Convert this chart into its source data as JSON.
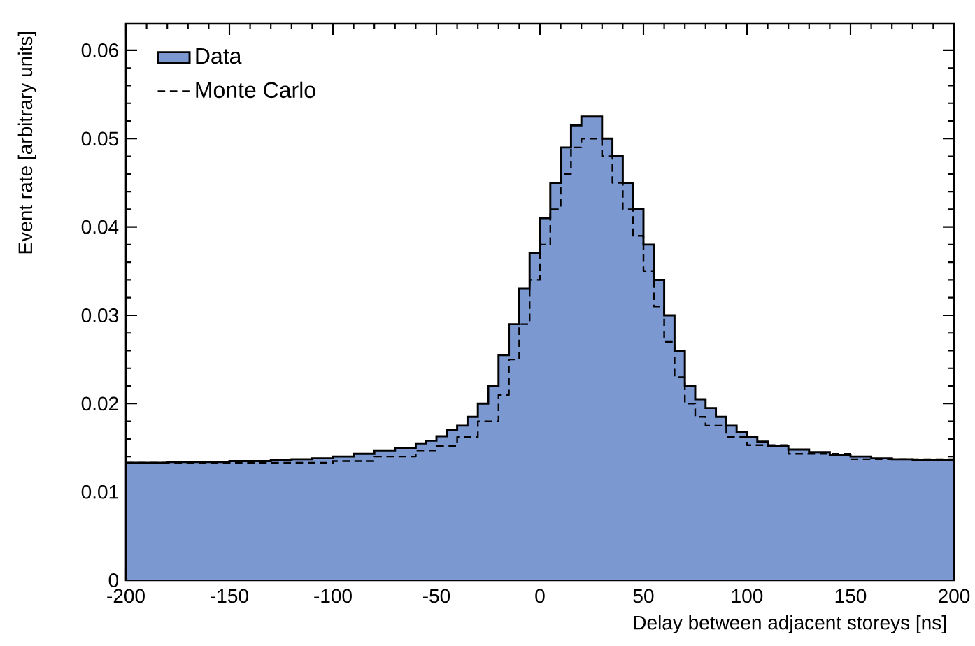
{
  "chart_data": {
    "type": "histogram",
    "xlabel": "Delay between adjacent storeys [ns]",
    "ylabel": "Event rate [arbitrary units]",
    "xlim": [
      -200,
      200
    ],
    "ylim": [
      0,
      0.063
    ],
    "xticks": [
      -200,
      -150,
      -100,
      -50,
      0,
      50,
      100,
      150,
      200
    ],
    "yticks": [
      0,
      0.01,
      0.02,
      0.03,
      0.04,
      0.05,
      0.06
    ],
    "legend": "top left",
    "series": [
      {
        "name": "Data",
        "color": "#7b98d0",
        "bins": [
          -200,
          -190,
          -180,
          -170,
          -160,
          -150,
          -140,
          -130,
          -120,
          -110,
          -100,
          -90,
          -80,
          -70,
          -60,
          -55,
          -50,
          -45,
          -40,
          -35,
          -30,
          -25,
          -20,
          -15,
          -10,
          -5,
          0,
          5,
          10,
          15,
          20,
          25,
          30,
          35,
          40,
          45,
          50,
          55,
          60,
          65,
          70,
          75,
          80,
          85,
          90,
          95,
          100,
          105,
          110,
          120,
          130,
          140,
          150,
          160,
          170,
          180,
          190,
          200
        ],
        "values": [
          0.0133,
          0.0133,
          0.0134,
          0.0134,
          0.0134,
          0.0135,
          0.0135,
          0.0136,
          0.0137,
          0.0138,
          0.014,
          0.0143,
          0.0147,
          0.015,
          0.0155,
          0.0158,
          0.0163,
          0.017,
          0.0175,
          0.0185,
          0.02,
          0.022,
          0.0255,
          0.029,
          0.033,
          0.037,
          0.041,
          0.045,
          0.049,
          0.0515,
          0.0525,
          0.0525,
          0.05,
          0.048,
          0.045,
          0.042,
          0.038,
          0.034,
          0.03,
          0.026,
          0.022,
          0.0205,
          0.0195,
          0.0185,
          0.0175,
          0.0168,
          0.0162,
          0.0157,
          0.0152,
          0.0148,
          0.0145,
          0.0142,
          0.014,
          0.0138,
          0.0137,
          0.0136,
          0.0136
        ]
      },
      {
        "name": "Monte Carlo",
        "type": "step",
        "color": "#000000",
        "line_style": "dashed",
        "x": [
          -200,
          -150,
          -100,
          -80,
          -60,
          -50,
          -40,
          -30,
          -20,
          -15,
          -10,
          -5,
          0,
          5,
          10,
          15,
          20,
          25,
          30,
          35,
          40,
          45,
          50,
          55,
          60,
          65,
          70,
          75,
          80,
          90,
          100,
          120,
          150,
          200
        ],
        "values": [
          0.0133,
          0.0133,
          0.0135,
          0.014,
          0.0147,
          0.0152,
          0.0162,
          0.018,
          0.021,
          0.025,
          0.029,
          0.034,
          0.038,
          0.042,
          0.046,
          0.049,
          0.05,
          0.05,
          0.048,
          0.045,
          0.042,
          0.039,
          0.035,
          0.031,
          0.027,
          0.023,
          0.02,
          0.0185,
          0.0175,
          0.0162,
          0.0153,
          0.0143,
          0.0137,
          0.0135
        ]
      }
    ]
  }
}
